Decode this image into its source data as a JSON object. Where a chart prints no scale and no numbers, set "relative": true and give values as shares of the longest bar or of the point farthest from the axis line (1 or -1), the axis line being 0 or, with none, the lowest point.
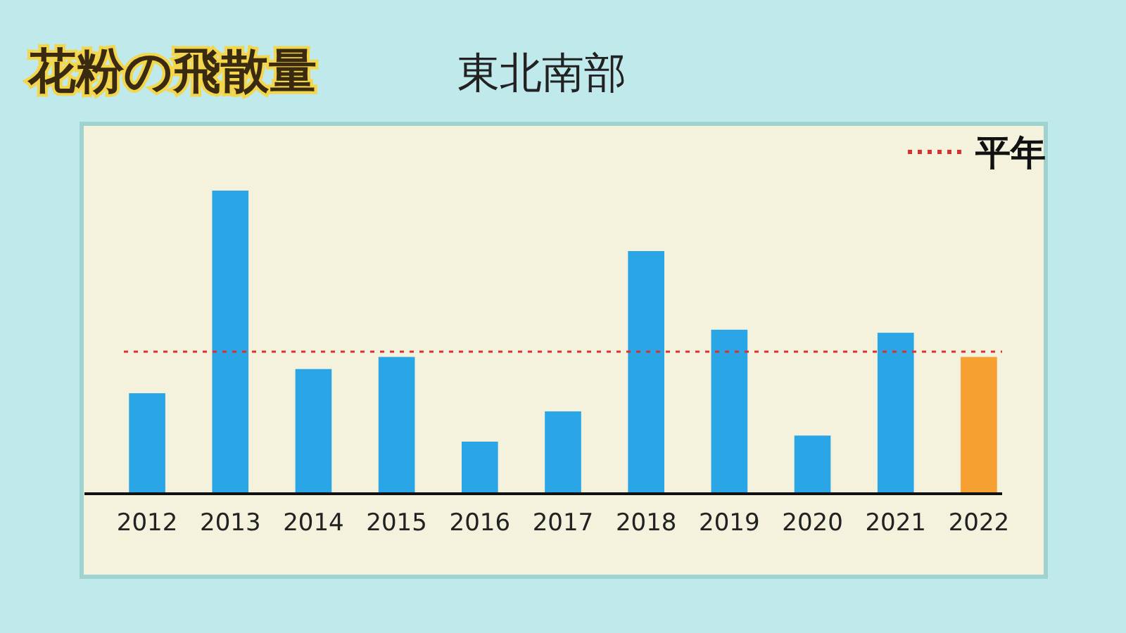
{
  "chart_data": {
    "type": "bar",
    "title": "花粉の飛散量",
    "subtitle": "東北南部",
    "relative": true,
    "categories": [
      "2012",
      "2013",
      "2014",
      "2015",
      "2016",
      "2017",
      "2018",
      "2019",
      "2020",
      "2021",
      "2022"
    ],
    "values": [
      0.33,
      1,
      0.41,
      0.45,
      0.17,
      0.27,
      0.8,
      0.54,
      0.19,
      0.53,
      0.45
    ],
    "colors": [
      "#2aa6e6",
      "#2aa6e6",
      "#2aa6e6",
      "#2aa6e6",
      "#2aa6e6",
      "#2aa6e6",
      "#2aa6e6",
      "#2aa6e6",
      "#2aa6e6",
      "#2aa6e6",
      "#f7a032"
    ],
    "ref_lines": [
      {
        "axis": "y",
        "value": 0.47,
        "label": "平年",
        "color": "#d93030",
        "line_style": "dotted"
      }
    ],
    "legend": "top right"
  }
}
